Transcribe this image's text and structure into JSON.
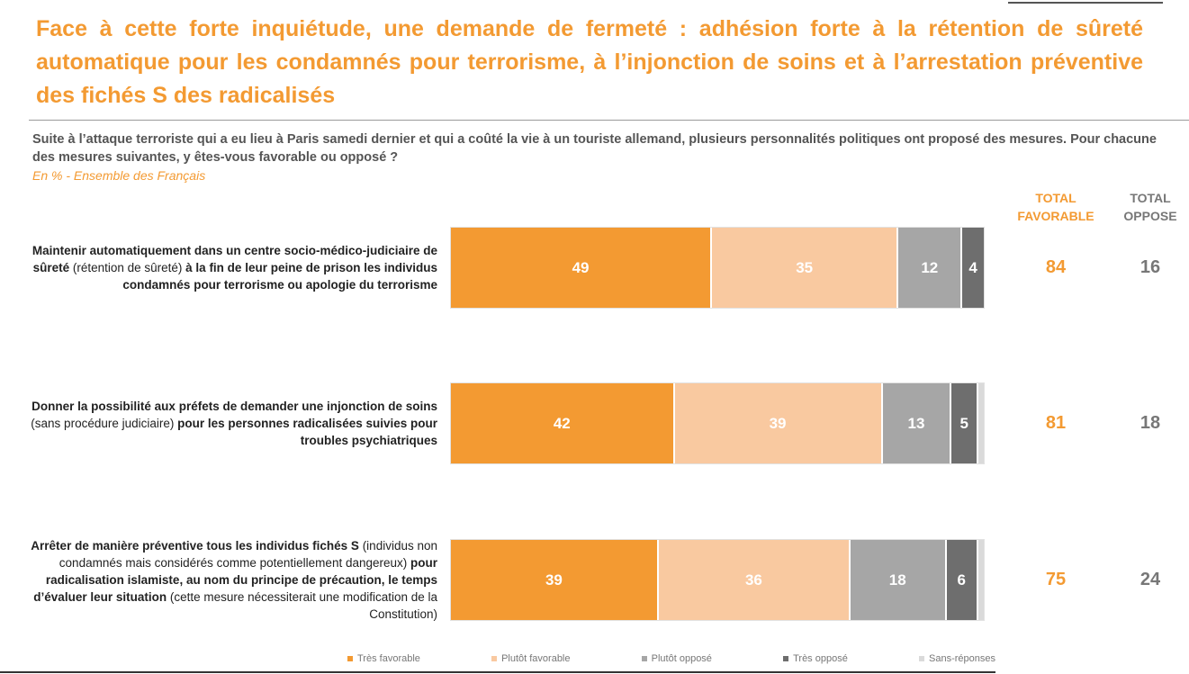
{
  "title": "Face à cette forte inquiétude, une demande de fermeté : adhésion forte à la rétention de sûreté automatique pour les condamnés pour terrorisme, à l’injonction de soins et à l’arrestation préventive des fichés S des radicalisés",
  "question": "Suite à l’attaque terroriste qui a eu lieu à Paris samedi dernier et qui a coûté la vie à un touriste allemand, plusieurs personnalités politiques ont proposé des mesures. Pour chacune des mesures suivantes, y êtes-vous favorable ou opposé ?",
  "subtitle": "En % - Ensemble des Français",
  "columns": {
    "total_favorable": "TOTAL FAVORABLE",
    "total_oppose": "TOTAL OPPOSE"
  },
  "colors": {
    "tres_favorable": "#f39a32",
    "plutot_favorable": "#f9c9a0",
    "plutot_oppose": "#a6a6a6",
    "tres_oppose": "#6e6e6e",
    "sans_reponses": "#dadada",
    "accent": "#f39a32"
  },
  "chart_data": {
    "type": "bar",
    "orientation": "horizontal-stacked",
    "title": "Face à cette forte inquiétude, une demande de fermeté : adhésion forte à la rétention de sûreté automatique pour les condamnés pour terrorisme, à l’injonction de soins et à l’arrestation préventive des fichés S des radicalisés",
    "unit": "%",
    "xlim": [
      0,
      100
    ],
    "legend_position": "bottom",
    "categories": [
      {
        "parts": [
          {
            "text": "Maintenir automatiquement dans un centre socio-médico-judiciaire de sûreté",
            "bold": true
          },
          {
            "text": " (rétention de sûreté) ",
            "bold": false
          },
          {
            "text": "à la fin de leur peine de prison les individus condamnés pour terrorisme ou apologie du terrorisme",
            "bold": true
          }
        ]
      },
      {
        "parts": [
          {
            "text": "Donner la possibilité aux préfets de demander une injonction de soins",
            "bold": true
          },
          {
            "text": " (sans procédure judiciaire) ",
            "bold": false
          },
          {
            "text": "pour les personnes radicalisées suivies pour troubles psychiatriques",
            "bold": true
          }
        ]
      },
      {
        "parts": [
          {
            "text": "Arrêter de manière préventive tous les individus fichés S",
            "bold": true
          },
          {
            "text": " (individus non condamnés mais considérés comme potentiellement dangereux) ",
            "bold": false
          },
          {
            "text": "pour radicalisation islamiste, au nom du principe de précaution, le temps d’évaluer leur situation",
            "bold": true
          },
          {
            "text": " (cette mesure nécessiterait une modification de la Constitution)",
            "bold": false
          }
        ]
      }
    ],
    "series": [
      {
        "name": "Très favorable",
        "values": [
          49,
          42,
          39
        ],
        "labels": [
          "49",
          "42",
          "39"
        ]
      },
      {
        "name": "Plutôt favorable",
        "values": [
          35,
          39,
          36
        ],
        "labels": [
          "35",
          "39",
          "36"
        ]
      },
      {
        "name": "Plutôt opposé",
        "values": [
          12,
          13,
          18
        ],
        "labels": [
          "12",
          "13",
          "18"
        ]
      },
      {
        "name": "Très opposé",
        "values": [
          4,
          5,
          6
        ],
        "labels": [
          "4",
          "5",
          "6"
        ]
      },
      {
        "name": "Sans-réponses",
        "values": [
          0,
          1,
          1
        ],
        "labels": [
          "",
          "",
          ""
        ]
      }
    ],
    "total_favorable": [
      "84",
      "81",
      "75"
    ],
    "total_oppose": [
      "16",
      "18",
      "24"
    ]
  }
}
